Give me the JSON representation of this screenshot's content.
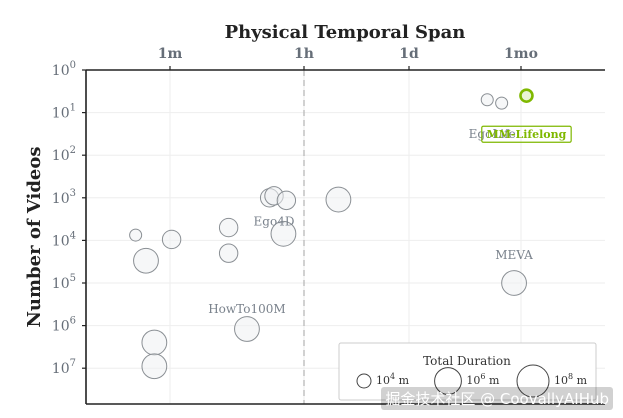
{
  "chart_data": {
    "type": "scatter",
    "title": "Physical Temporal Span",
    "ylabel": "Number of Videos",
    "x_scale": "log",
    "y_scale": "log",
    "y_inverted": true,
    "x_tick_labels": [
      "1m",
      "1h",
      "1d",
      "1mo"
    ],
    "y_tick_labels": [
      {
        "base": "10",
        "exp": "0"
      },
      {
        "base": "10",
        "exp": "1"
      },
      {
        "base": "10",
        "exp": "2"
      },
      {
        "base": "10",
        "exp": "3"
      },
      {
        "base": "10",
        "exp": "4"
      },
      {
        "base": "10",
        "exp": "5"
      },
      {
        "base": "10",
        "exp": "6"
      },
      {
        "base": "10",
        "exp": "7"
      }
    ],
    "reference_line": {
      "axis": "x",
      "label": "1h",
      "style": "dashed"
    },
    "grid": true,
    "points": [
      {
        "x_minutes": 0.35,
        "y": 7500,
        "size": 10000.0
      },
      {
        "x_minutes": 0.48,
        "y": 30000,
        "size": 1000000.0
      },
      {
        "x_minutes": 0.62,
        "y": 2500000,
        "size": 1000000.0
      },
      {
        "x_minutes": 0.62,
        "y": 9000000,
        "size": 1000000.0
      },
      {
        "x_minutes": 1.05,
        "y": 9500,
        "size": 100000.0
      },
      {
        "x_minutes": 6.0,
        "y": 5000,
        "size": 100000.0
      },
      {
        "x_minutes": 6.0,
        "y": 20000,
        "size": 100000.0
      },
      {
        "x_minutes": 10.5,
        "y": 1200000,
        "size": 1000000.0
      },
      {
        "x_minutes": 21,
        "y": 1000,
        "size": 100000.0
      },
      {
        "x_minutes": 24,
        "y": 900,
        "size": 100000.0
      },
      {
        "x_minutes": 32,
        "y": 7000,
        "size": 1000000.0
      },
      {
        "x_minutes": 35,
        "y": 1150,
        "size": 100000.0
      },
      {
        "x_minutes": 170,
        "y": 1100,
        "size": 1000000.0
      },
      {
        "x_minutes": 15500,
        "y": 5,
        "size": 10000.0
      },
      {
        "x_minutes": 24000,
        "y": 6,
        "size": 10000.0
      },
      {
        "x_minutes": 35000,
        "y": 100000,
        "size": 1000000.0
      },
      {
        "x_minutes": 51000,
        "y": 4,
        "size": 10000.0,
        "highlight": true
      }
    ],
    "annotations": [
      {
        "text": "Ego4D",
        "x_minutes": 24,
        "y": 4500
      },
      {
        "text": "HowTo100M",
        "x_minutes": 10.5,
        "y": 500000
      },
      {
        "text": "EgoLife",
        "x_minutes": 18000,
        "y": 40
      },
      {
        "text": "MEVA",
        "x_minutes": 35000,
        "y": 27000
      },
      {
        "text": "MM-Lifelong",
        "x_minutes": 51000,
        "y": 40,
        "boxed": true
      }
    ],
    "legend": {
      "title": "Total Duration",
      "placement": "bottom-right",
      "entries": [
        {
          "base": "10",
          "exp": "4",
          "unit": "m",
          "size": 10000.0
        },
        {
          "base": "10",
          "exp": "6",
          "unit": "m",
          "size": 1000000.0
        },
        {
          "base": "10",
          "exp": "8",
          "unit": "m",
          "size": 100000000.0
        }
      ]
    },
    "colors": {
      "point_stroke": "#8a8f94",
      "point_fill": "#eef0f2",
      "highlight_stroke": "#7fb800",
      "highlight_fill": "#eaf4d4",
      "highlight_text": "#7fb800",
      "axis": "#222222",
      "tick_label": "#666e78",
      "annotation": "#7a828c",
      "grid": "#eeeeee"
    }
  },
  "watermark": "掘金技术社区 @ CoovallyAIHub"
}
